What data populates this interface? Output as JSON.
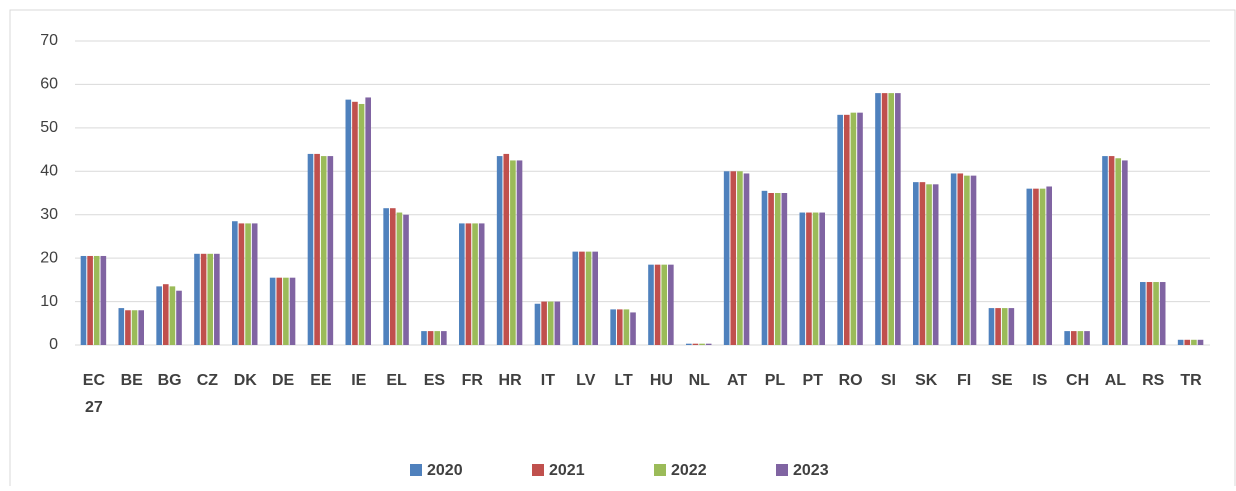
{
  "chart_data": {
    "type": "bar",
    "categories": [
      "EC 27",
      "BE",
      "BG",
      "CZ",
      "DK",
      "DE",
      "EE",
      "IE",
      "EL",
      "ES",
      "FR",
      "HR",
      "IT",
      "LV",
      "LT",
      "HU",
      "NL",
      "AT",
      "PL",
      "PT",
      "RO",
      "SI",
      "SK",
      "FI",
      "SE",
      "IS",
      "CH",
      "AL",
      "RS",
      "TR"
    ],
    "series": [
      {
        "name": "2020",
        "color": "#4f81bd",
        "values": [
          20.5,
          8.5,
          13.5,
          21,
          28.5,
          15.5,
          44,
          56.5,
          31.5,
          3.2,
          28,
          43.5,
          9.5,
          21.5,
          8.2,
          18.5,
          0.3,
          40,
          35.5,
          30.5,
          53,
          58,
          37.5,
          39.5,
          8.5,
          36,
          3.2,
          43.5,
          14.5,
          1.2
        ]
      },
      {
        "name": "2021",
        "color": "#c0504d",
        "values": [
          20.5,
          8,
          14,
          21,
          28,
          15.5,
          44,
          56,
          31.5,
          3.2,
          28,
          44,
          10,
          21.5,
          8.2,
          18.5,
          0.3,
          40,
          35,
          30.5,
          53,
          58,
          37.5,
          39.5,
          8.5,
          36,
          3.2,
          43.5,
          14.5,
          1.2
        ]
      },
      {
        "name": "2022",
        "color": "#9bbb59",
        "values": [
          20.5,
          8,
          13.5,
          21,
          28,
          15.5,
          43.5,
          55.5,
          30.5,
          3.2,
          28,
          42.5,
          10,
          21.5,
          8.2,
          18.5,
          0.3,
          40,
          35,
          30.5,
          53.5,
          58,
          37,
          39,
          8.5,
          36,
          3.2,
          43,
          14.5,
          1.2
        ]
      },
      {
        "name": "2023",
        "color": "#8064a2",
        "values": [
          20.5,
          8,
          12.5,
          21,
          28,
          15.5,
          43.5,
          57,
          30,
          3.2,
          28,
          42.5,
          10,
          21.5,
          7.5,
          18.5,
          0.3,
          39.5,
          35,
          30.5,
          53.5,
          58,
          37,
          39,
          8.5,
          36.5,
          3.2,
          42.5,
          14.5,
          1.2
        ]
      }
    ],
    "ylim": [
      0,
      70
    ],
    "yticks": [
      0,
      10,
      20,
      30,
      40,
      50,
      60,
      70
    ],
    "grid": true,
    "legend": "bottom"
  }
}
